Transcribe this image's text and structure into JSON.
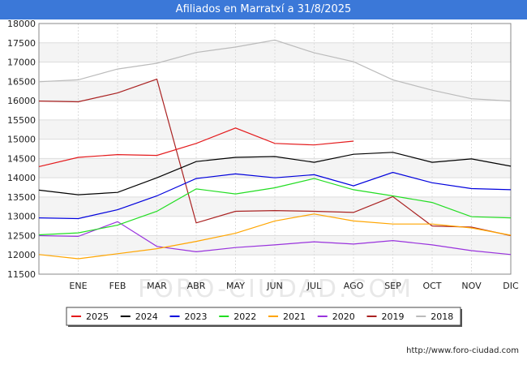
{
  "title": "Afiliados en Marratxí a 31/8/2025",
  "footer": "http://www.foro-ciudad.com",
  "watermark": "FORO-CIUDAD.COM",
  "chart_data": {
    "type": "line",
    "title": "Afiliados en Marratxí a 31/8/2025",
    "categories": [
      "",
      "ENE",
      "FEB",
      "MAR",
      "ABR",
      "MAY",
      "JUN",
      "JUL",
      "AGO",
      "SEP",
      "OCT",
      "NOV",
      "DIC"
    ],
    "y_ticks": [
      11500,
      12000,
      12500,
      13000,
      13500,
      14000,
      14500,
      15000,
      15500,
      16000,
      16500,
      17000,
      17500,
      18000
    ],
    "ylim": [
      11500,
      18000
    ],
    "grid": true,
    "legend_position": "bottom",
    "series": [
      {
        "name": "2025",
        "color": "#e41a1c",
        "values": [
          14290,
          14530,
          14600,
          14580,
          14890,
          15290,
          14890,
          14850,
          14950,
          null,
          null,
          null,
          null
        ]
      },
      {
        "name": "2024",
        "color": "#000000",
        "values": [
          13680,
          13560,
          13620,
          14000,
          14420,
          14530,
          14550,
          14400,
          14610,
          14660,
          14400,
          14490,
          14300
        ]
      },
      {
        "name": "2023",
        "color": "#0000dd",
        "values": [
          12960,
          12940,
          13170,
          13530,
          13980,
          14100,
          14000,
          14080,
          13790,
          14140,
          13870,
          13720,
          13690
        ]
      },
      {
        "name": "2022",
        "color": "#22dd22",
        "values": [
          12520,
          12570,
          12770,
          13130,
          13710,
          13580,
          13740,
          13980,
          13690,
          13530,
          13360,
          12990,
          12960
        ]
      },
      {
        "name": "2021",
        "color": "#ffa500",
        "values": [
          12010,
          11900,
          12030,
          12160,
          12350,
          12560,
          12880,
          13060,
          12880,
          12800,
          12800,
          12700,
          12510
        ]
      },
      {
        "name": "2020",
        "color": "#9933dd",
        "values": [
          12500,
          12480,
          12860,
          12220,
          12080,
          12190,
          12260,
          12340,
          12280,
          12370,
          12260,
          12110,
          12010
        ]
      },
      {
        "name": "2019",
        "color": "#aa2222",
        "values": [
          15990,
          15970,
          16200,
          16560,
          12830,
          13130,
          13150,
          13130,
          13100,
          13510,
          12750,
          12720,
          12500
        ]
      },
      {
        "name": "2018",
        "color": "#bbbbbb",
        "values": [
          16490,
          16540,
          16820,
          16970,
          17250,
          17390,
          17570,
          17240,
          17010,
          16540,
          16270,
          16050,
          15990
        ]
      }
    ]
  }
}
